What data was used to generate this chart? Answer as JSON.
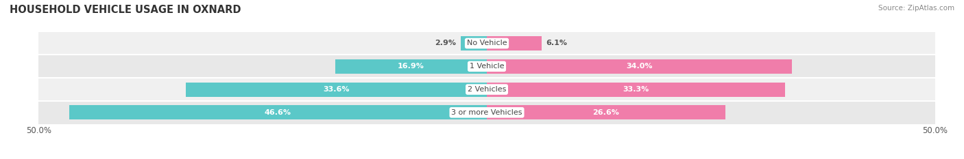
{
  "title": "HOUSEHOLD VEHICLE USAGE IN OXNARD",
  "source": "Source: ZipAtlas.com",
  "categories": [
    "No Vehicle",
    "1 Vehicle",
    "2 Vehicles",
    "3 or more Vehicles"
  ],
  "owner_values": [
    2.9,
    16.9,
    33.6,
    46.6
  ],
  "renter_values": [
    6.1,
    34.0,
    33.3,
    26.6
  ],
  "owner_color": "#5bc8c8",
  "renter_color": "#f07daa",
  "xlim": 50.0,
  "bar_height": 0.62,
  "title_fontsize": 10.5,
  "label_fontsize": 8.0,
  "value_fontsize": 8.0,
  "axis_label_fontsize": 8.5,
  "row_bg_colors": [
    "#f0f0f0",
    "#e8e8e8",
    "#f0f0f0",
    "#e8e8e8"
  ],
  "outside_threshold": 8.0
}
